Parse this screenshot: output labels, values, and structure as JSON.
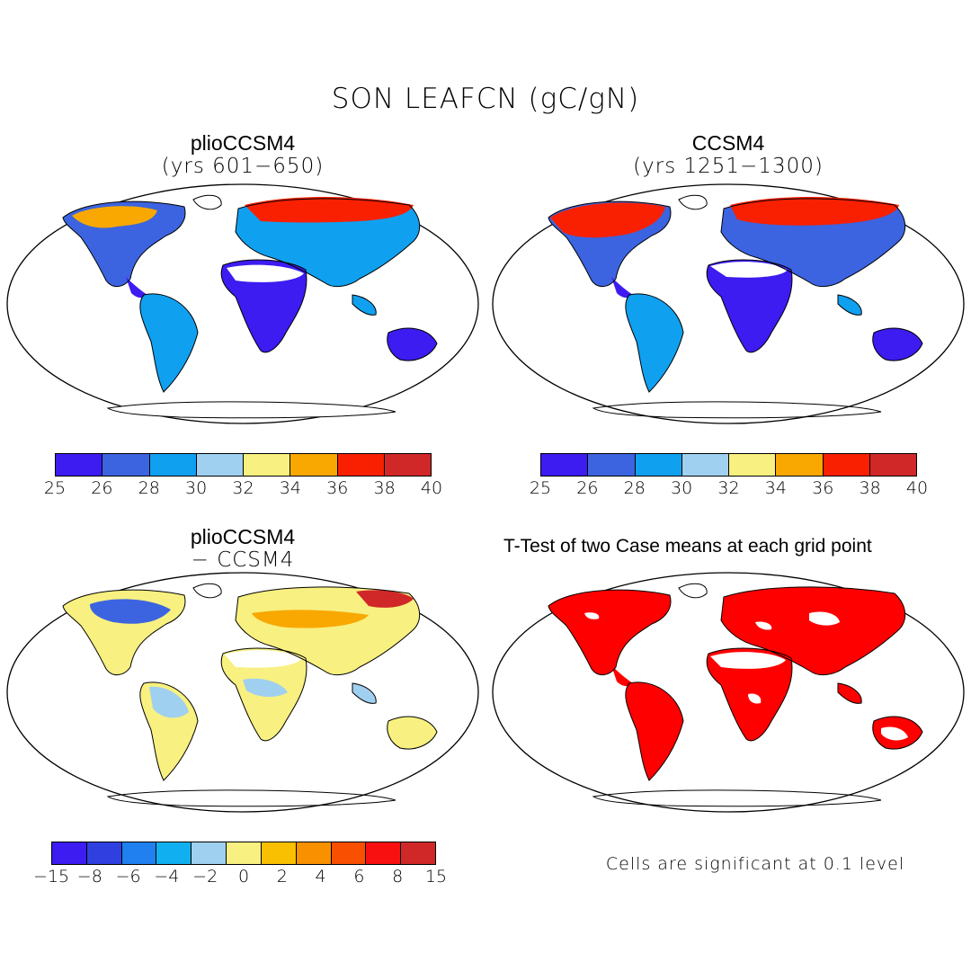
{
  "figure": {
    "title": "SON LEAFCN (gC/gN)",
    "panels": {
      "top_left": {
        "title": "plioCCSM4",
        "subtitle": "(yrs 601−650)"
      },
      "top_right": {
        "title": "CCSM4",
        "subtitle": "(yrs 1251−1300)"
      },
      "bottom_left": {
        "title": "plioCCSM4",
        "subtitle": "− CCSM4"
      },
      "bottom_right": {
        "title": "T-Test of two Case means at each grid point"
      }
    },
    "note": "Cells are significant at 0.1 level"
  },
  "colorbars": {
    "absolute": {
      "labels": [
        "25",
        "26",
        "28",
        "30",
        "32",
        "34",
        "36",
        "38",
        "40"
      ],
      "colors": [
        "#3c1cf0",
        "#3c64e0",
        "#10a0f0",
        "#a0d0f0",
        "#f8f080",
        "#f8a800",
        "#f82000",
        "#d02828"
      ]
    },
    "difference": {
      "labels": [
        "−15",
        "−8",
        "−6",
        "−4",
        "−2",
        "0",
        "2",
        "4",
        "6",
        "8",
        "15"
      ],
      "colors": [
        "#3c1cf0",
        "#3040e0",
        "#2080f0",
        "#10b0f0",
        "#a0d0f0",
        "#f8f080",
        "#f8c000",
        "#f89000",
        "#f85000",
        "#f81010",
        "#d02828"
      ]
    }
  },
  "map_colors": {
    "land_outline": "#000000",
    "significant": "#ff0000"
  }
}
